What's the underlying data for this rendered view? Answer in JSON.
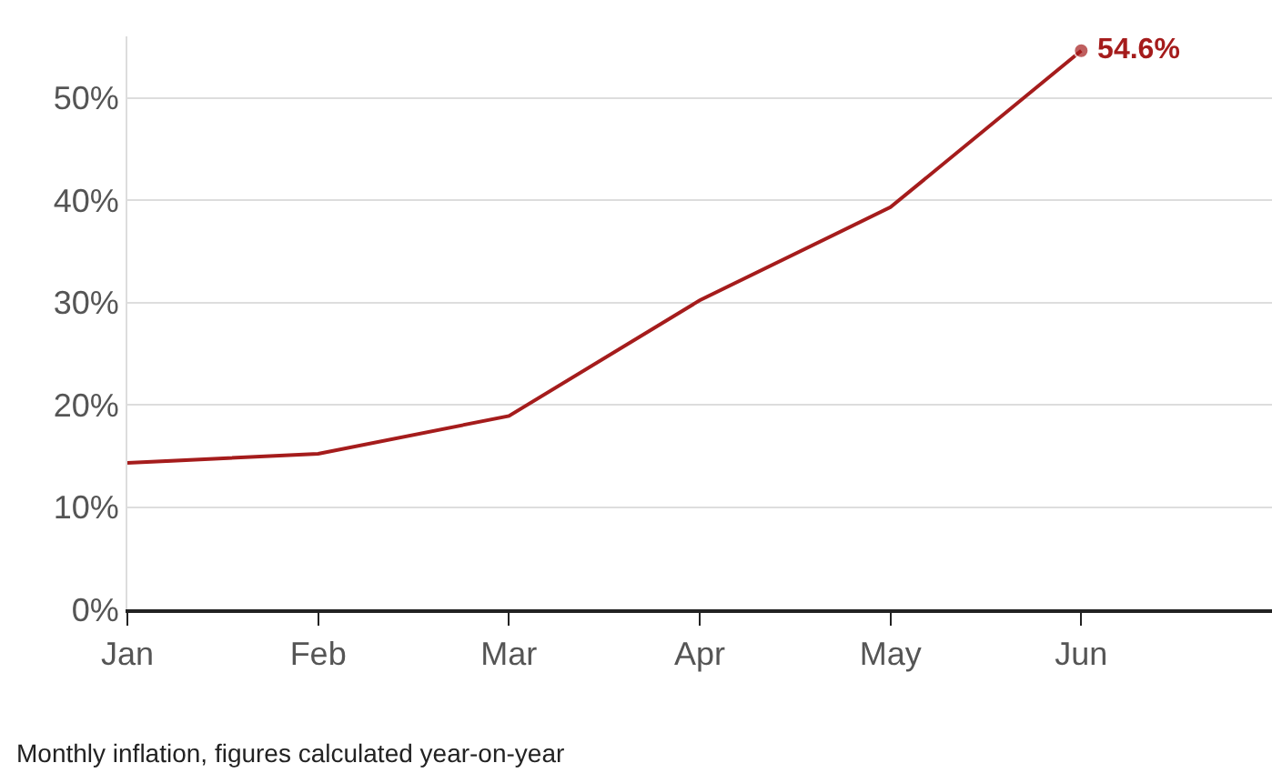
{
  "chart_data": {
    "type": "line",
    "categories": [
      "Jan",
      "Feb",
      "Mar",
      "Apr",
      "May",
      "Jun"
    ],
    "series": [
      {
        "color": "#a51c1c",
        "values": [
          14.3,
          15.2,
          18.9,
          30.2,
          39.3,
          54.6
        ],
        "value_labels": [
          null,
          null,
          null,
          null,
          null,
          "54.6%"
        ]
      }
    ],
    "ylim": [
      0,
      56
    ],
    "yticks": [
      {
        "value": 0,
        "label": "0%"
      },
      {
        "value": 10,
        "label": "10%"
      },
      {
        "value": 20,
        "label": "20%"
      },
      {
        "value": 30,
        "label": "30%"
      },
      {
        "value": 40,
        "label": "40%"
      },
      {
        "value": 50,
        "label": "50%"
      }
    ],
    "grid": "y",
    "marker": "none",
    "line_style": "solid",
    "annotations": [
      "Monthly inflation, figures calculated year-on-year"
    ]
  }
}
